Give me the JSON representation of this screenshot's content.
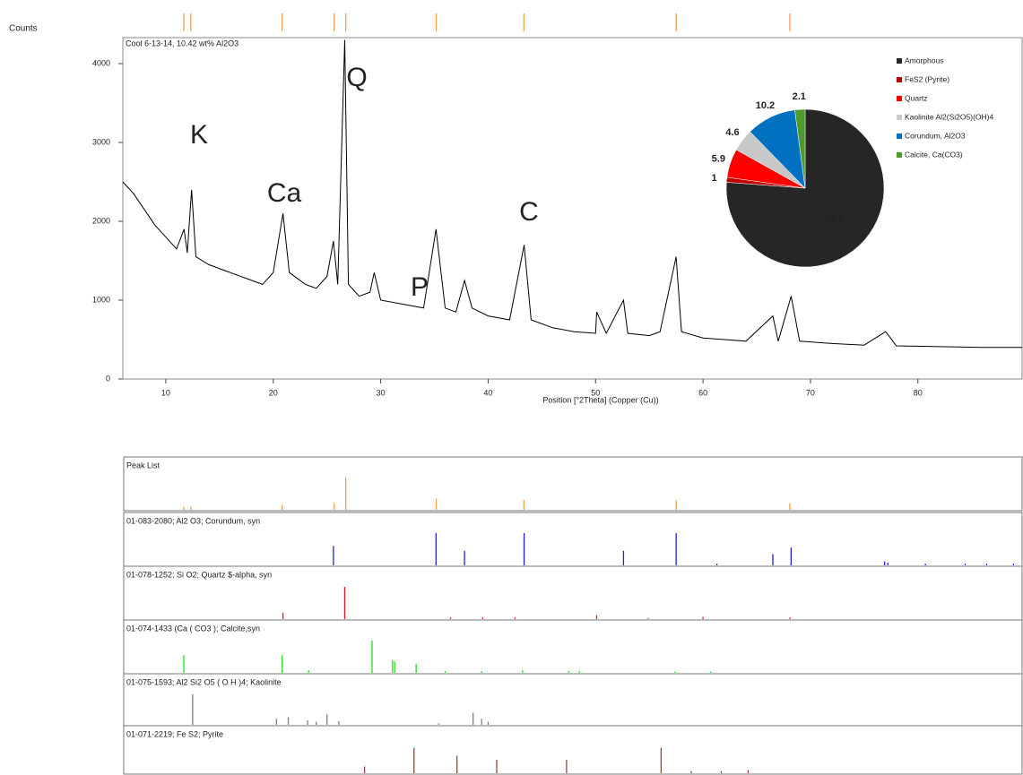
{
  "chart_data": [
    {
      "type": "line",
      "y_label": "Counts",
      "title": "Cool 6-13-14, 10.42 wt% Al2O3",
      "x_label": "Position [°2Theta] (Copper (Cu))",
      "xlim": [
        6,
        89.7
      ],
      "ylim": [
        0,
        4330
      ],
      "xticks": [
        10,
        20,
        30,
        40,
        50,
        60,
        70,
        80
      ],
      "yticks": [
        0,
        1000,
        2000,
        3000,
        4000
      ],
      "color": "#000000",
      "x": [
        6,
        7,
        8,
        9,
        10,
        11,
        11.7,
        12,
        12.4,
        12.8,
        14,
        16,
        18,
        19,
        20,
        20.9,
        21.5,
        23,
        24,
        25,
        25.6,
        26,
        26.65,
        27,
        28,
        29,
        29.4,
        30,
        32,
        34,
        35.15,
        36,
        37,
        37.8,
        38.5,
        40,
        42,
        43.35,
        44,
        46,
        48,
        50,
        50.1,
        51,
        52.6,
        53,
        55,
        56,
        57.5,
        58,
        60,
        62,
        64,
        66.5,
        67,
        68.2,
        69,
        72,
        75,
        77,
        78,
        82,
        86,
        89.7
      ],
      "values": [
        2500,
        2350,
        2150,
        1950,
        1800,
        1650,
        1900,
        1600,
        2400,
        1550,
        1450,
        1350,
        1250,
        1200,
        1350,
        2100,
        1350,
        1200,
        1150,
        1300,
        1750,
        1200,
        4300,
        1200,
        1050,
        1100,
        1350,
        1000,
        950,
        900,
        1900,
        900,
        850,
        1250,
        900,
        800,
        750,
        1700,
        750,
        650,
        600,
        580,
        850,
        580,
        1000,
        580,
        550,
        600,
        1550,
        600,
        520,
        500,
        480,
        800,
        480,
        1050,
        480,
        450,
        430,
        600,
        420,
        410,
        400,
        400
      ],
      "annotations": [
        {
          "text": "K",
          "color": "#8c8c8c"
        },
        {
          "text": "Ca",
          "color": "#8cc63f"
        },
        {
          "text": "Q",
          "color": "#ff0000"
        },
        {
          "text": "P",
          "color": "#a00000"
        },
        {
          "text": "C",
          "color": "#2e3192"
        }
      ]
    },
    {
      "type": "pie",
      "categories": [
        "Amorphous",
        "FeS2 (Pyrite)",
        "Quartz",
        "Kaolinite Al2(Si2O5)(OH)4",
        "Corundum, Al2O3",
        "Calcite, Ca(CO3)"
      ],
      "values": [
        76.2,
        1.0,
        5.9,
        4.6,
        10.2,
        2.1
      ],
      "colors": [
        "#262626",
        "#c00000",
        "#ff0000",
        "#c8c8c8",
        "#0070c0",
        "#4e9a2a"
      ]
    },
    {
      "type": "stick",
      "xlim": [
        6,
        89.7
      ],
      "panels": [
        {
          "name": "Peak List",
          "color": "#f0a050",
          "label_color": "#000000",
          "x": [
            11.67,
            12.33,
            20.83,
            25.67,
            26.75,
            35.17,
            43.33,
            57.5,
            68.08
          ],
          "values": [
            10,
            10,
            15,
            20,
            100,
            35,
            30,
            30,
            20
          ]
        },
        {
          "name": "01-083-2080; Al2 O3; Corundum, syn",
          "color": "#2020e0",
          "label_color": "#2020e0",
          "x": [
            25.6,
            35.15,
            37.8,
            43.35,
            52.6,
            57.5,
            61.3,
            66.5,
            68.2,
            76.9,
            77.2,
            80.7,
            84.4,
            86.4,
            88.9
          ],
          "values": [
            60,
            100,
            45,
            100,
            45,
            100,
            5,
            35,
            55,
            12,
            8,
            5,
            5,
            5,
            5
          ]
        },
        {
          "name": "01-078-1252; Si O2; Quartz $-alpha, syn",
          "color": "#e02020",
          "label_color": "#e02020",
          "x": [
            20.9,
            26.65,
            36.5,
            39.5,
            42.5,
            50.1,
            54.9,
            60,
            68.1
          ],
          "values": [
            20,
            100,
            5,
            5,
            5,
            12,
            3,
            7,
            5
          ]
        },
        {
          "name": "01-074-1433 (Ca ( CO3 ); Calcite,syn",
          "color": "#20e020",
          "label_color": "#20e020",
          "x": [
            11.67,
            20.83,
            23.3,
            29.2,
            31.1,
            31.3,
            33.3,
            36,
            39.4,
            43.2,
            47.5,
            48.5,
            57.4,
            60.7
          ],
          "values": [
            55,
            55,
            8,
            100,
            40,
            35,
            28,
            5,
            5,
            8,
            5,
            5,
            4,
            4
          ]
        },
        {
          "name": "01-075-1593; Al2 Si2 O5 ( O H )4; Kaolinite",
          "color": "#808080",
          "label_color": "#808080",
          "x": [
            12.5,
            20.3,
            21.4,
            23.2,
            24,
            25,
            26.1,
            35.4,
            38.6,
            39.4,
            40
          ],
          "values": [
            100,
            20,
            25,
            15,
            10,
            35,
            12,
            5,
            40,
            20,
            10
          ]
        },
        {
          "name": "01-071-2219; Fe S2; Pyrite",
          "color": "#a04040",
          "label_color": "#a00000",
          "x": [
            28.5,
            33.1,
            37.1,
            40.8,
            47.3,
            56.1,
            58.9,
            61.7,
            64.2
          ],
          "values": [
            25,
            95,
            65,
            50,
            50,
            95,
            8,
            8,
            12
          ]
        }
      ]
    }
  ]
}
